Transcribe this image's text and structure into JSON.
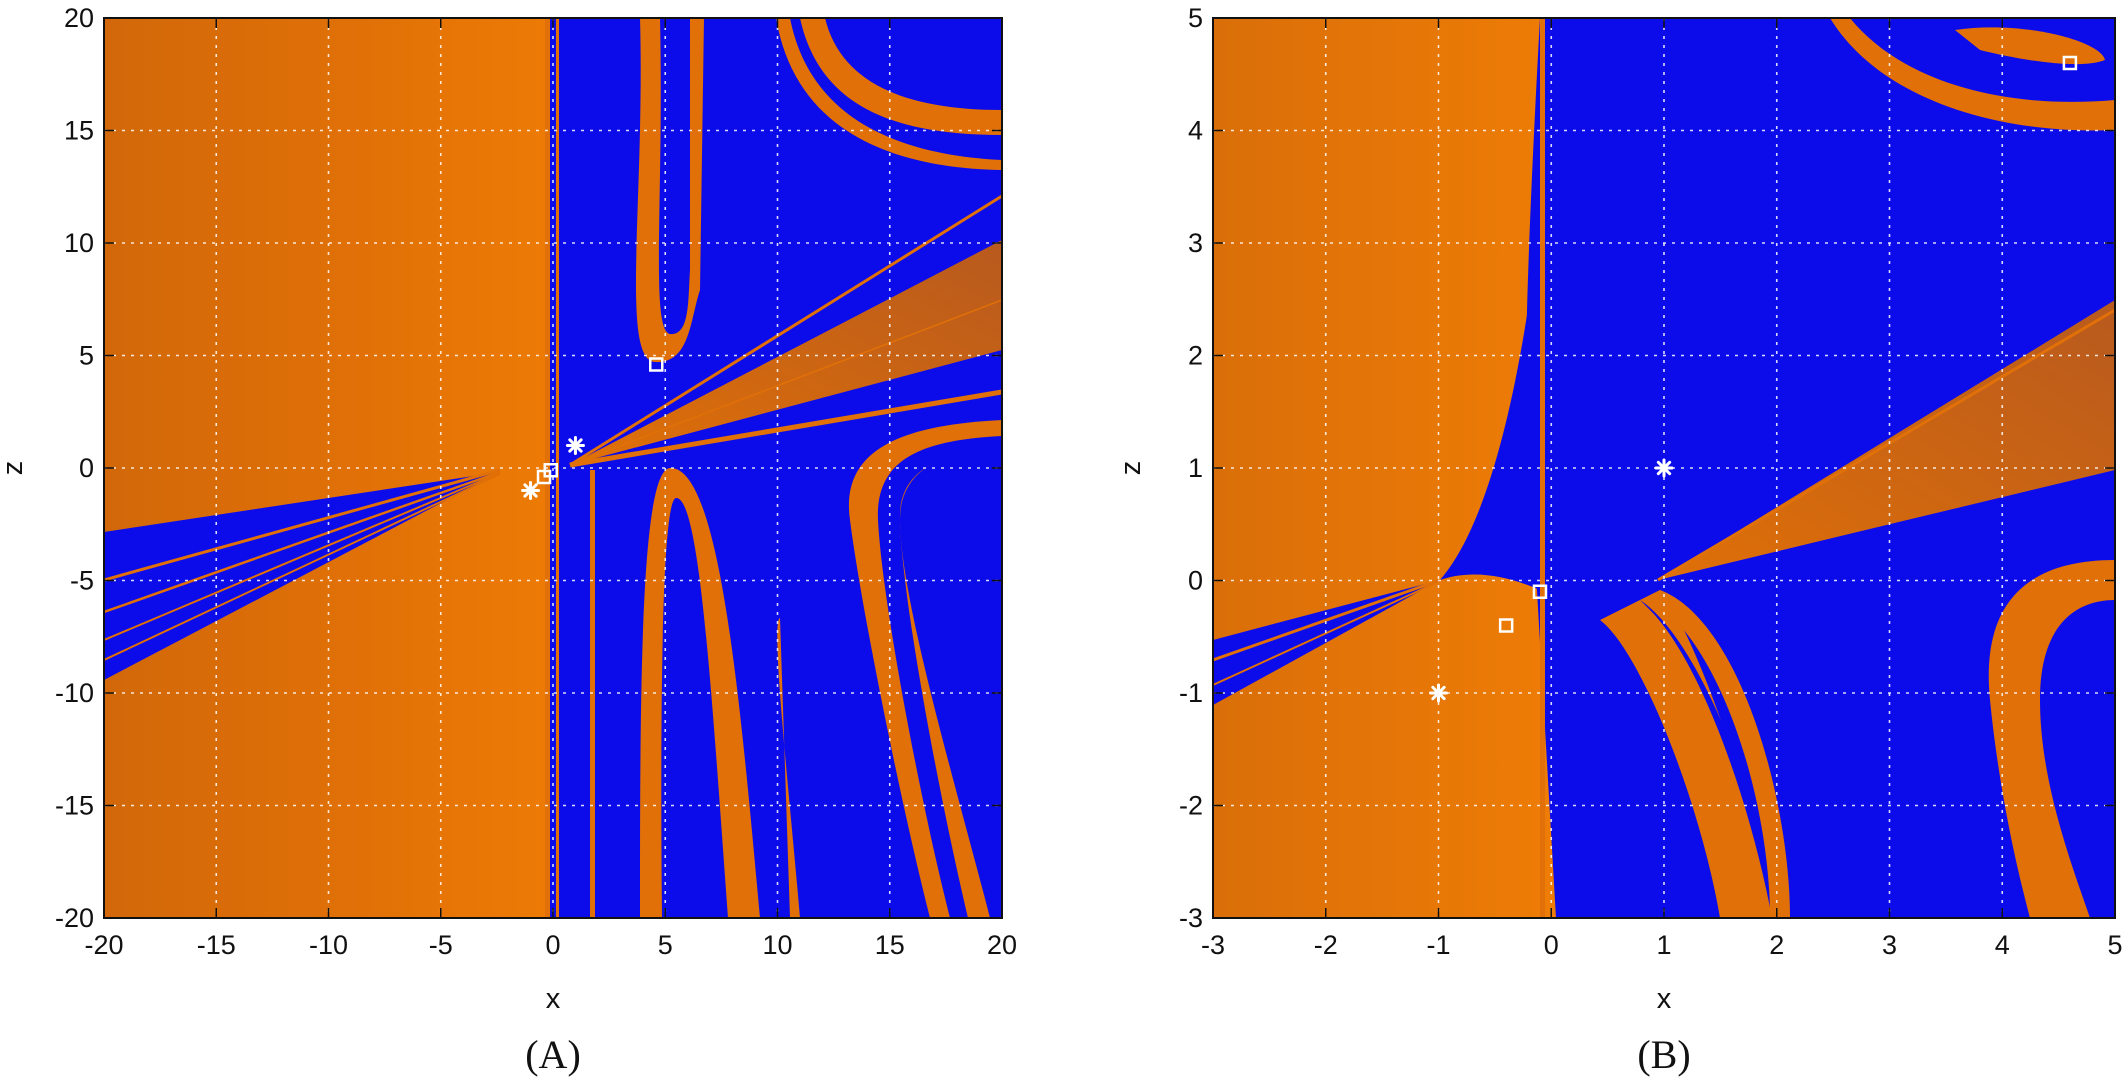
{
  "colors": {
    "orange": "#E07007",
    "blue": "#0C0CEB",
    "marker": "#FFFFFF"
  },
  "chart_data": [
    {
      "type": "heatmap",
      "title": "",
      "caption": "(A)",
      "xlabel": "x",
      "ylabel": "z",
      "xlim": [
        -20,
        20
      ],
      "ylim": [
        -20,
        20
      ],
      "xticks": [
        -20,
        -15,
        -10,
        -5,
        0,
        5,
        10,
        15,
        20
      ],
      "yticks": [
        -20,
        -15,
        -10,
        -5,
        0,
        5,
        10,
        15,
        20
      ],
      "grid": true,
      "series": [
        {
          "marker": "asterisk",
          "points": [
            [
              1,
              1
            ],
            [
              -1,
              -1
            ]
          ]
        },
        {
          "marker": "square",
          "points": [
            [
              4.6,
              4.6
            ],
            [
              -0.1,
              -0.1
            ],
            [
              -0.4,
              -0.4
            ]
          ]
        }
      ]
    },
    {
      "type": "heatmap",
      "title": "",
      "caption": "(B)",
      "xlabel": "x",
      "ylabel": "z",
      "xlim": [
        -3,
        5
      ],
      "ylim": [
        -3,
        5
      ],
      "xticks": [
        -3,
        -2,
        -1,
        0,
        1,
        2,
        3,
        4,
        5
      ],
      "yticks": [
        -3,
        -2,
        -1,
        0,
        1,
        2,
        3,
        4,
        5
      ],
      "grid": true,
      "series": [
        {
          "marker": "asterisk",
          "points": [
            [
              1,
              1
            ],
            [
              -1,
              -1
            ]
          ]
        },
        {
          "marker": "square",
          "points": [
            [
              4.6,
              4.6
            ],
            [
              -0.1,
              -0.1
            ],
            [
              -0.4,
              -0.4
            ]
          ]
        }
      ]
    }
  ]
}
